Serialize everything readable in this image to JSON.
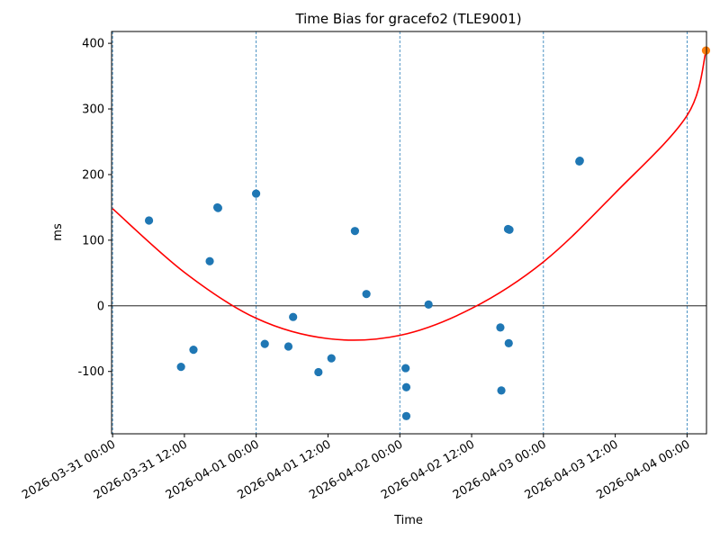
{
  "chart_data": {
    "type": "scatter",
    "title": "Time Bias for gracefo2 (TLE9001)",
    "xlabel": "Time",
    "ylabel": "ms",
    "x_start": "2026-03-31 00:00",
    "xlim": [
      "2026-03-30 23:50",
      "2026-04-04 03:15"
    ],
    "ylim": [
      -195,
      418
    ],
    "x_ticks": [
      "2026-03-31 00:00",
      "2026-03-31 12:00",
      "2026-04-01 00:00",
      "2026-04-01 12:00",
      "2026-04-02 00:00",
      "2026-04-02 12:00",
      "2026-04-03 00:00",
      "2026-04-03 12:00",
      "2026-04-04 00:00"
    ],
    "y_ticks": [
      -100,
      0,
      100,
      200,
      300,
      400
    ],
    "vertical_gridlines": [
      "2026-03-31 00:00",
      "2026-04-01 00:00",
      "2026-04-02 00:00",
      "2026-04-03 00:00",
      "2026-04-04 00:00"
    ],
    "horizontal_line_y": 0,
    "colors": {
      "points": "#1f77b4",
      "fit": "#ff0000",
      "prediction": "#ff7f0e",
      "grid": "#1f77b4"
    },
    "series": [
      {
        "kind": "points",
        "x": [
          "2026-03-31 06:05",
          "2026-03-31 11:26",
          "2026-03-31 13:31",
          "2026-03-31 16:14",
          "2026-03-31 17:31",
          "2026-03-31 17:38",
          "2026-03-31 23:59",
          "2026-04-01 01:26",
          "2026-04-01 05:23",
          "2026-04-01 06:10",
          "2026-04-01 10:24",
          "2026-04-01 12:34",
          "2026-04-01 16:30",
          "2026-04-01 18:25",
          "2026-04-02 00:58",
          "2026-04-02 01:05",
          "2026-04-02 01:05",
          "2026-04-02 04:48",
          "2026-04-02 16:48",
          "2026-04-02 16:58",
          "2026-04-02 18:05",
          "2026-04-02 18:12",
          "2026-04-02 18:19",
          "2026-04-03 06:00",
          "2026-04-03 06:05"
        ],
        "y": [
          130,
          -93,
          -67,
          68,
          150,
          149,
          171,
          -58,
          -62,
          -17,
          -101,
          -80,
          114,
          18,
          -95,
          -124,
          -168,
          2,
          -33,
          -129,
          117,
          -57,
          116,
          220,
          221
        ]
      },
      {
        "kind": "fit",
        "x": [
          "2026-03-31 00:00",
          "2026-03-31 12:00",
          "2026-04-01 00:00",
          "2026-04-01 12:00",
          "2026-04-02 00:00",
          "2026-04-02 12:00",
          "2026-04-03 00:00",
          "2026-04-03 12:00",
          "2026-04-04 00:00",
          "2026-04-04 03:10"
        ],
        "y": [
          148,
          51,
          -19,
          -50,
          -45,
          -4,
          67,
          172,
          290,
          388
        ]
      },
      {
        "kind": "prediction",
        "x": [
          "2026-04-04 03:10"
        ],
        "y": [
          389
        ]
      }
    ]
  }
}
